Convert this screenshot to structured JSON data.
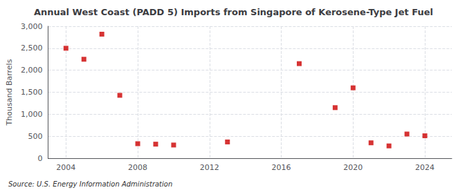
{
  "chart_data": {
    "type": "scatter",
    "title": "Annual West Coast (PADD 5) Imports from Singapore of Kerosene-Type Jet Fuel",
    "ylabel": "Thousand Barrels",
    "source": "Source: U.S. Energy Information Administration",
    "x": [
      2004,
      2005,
      2006,
      2007,
      2008,
      2009,
      2010,
      2013,
      2017,
      2019,
      2020,
      2021,
      2022,
      2023,
      2024
    ],
    "values": [
      2500,
      2250,
      2820,
      1430,
      330,
      320,
      300,
      370,
      2150,
      1150,
      1600,
      350,
      280,
      550,
      510
    ],
    "color": "#cc0000",
    "marker": "square",
    "xlim": [
      2003.0,
      2025.5
    ],
    "xticks": [
      2004,
      2008,
      2012,
      2016,
      2020,
      2024
    ],
    "ylim": [
      0,
      3000
    ],
    "yticks": [
      0,
      500,
      {
        "value": 1000,
        "label": "1,000"
      },
      {
        "value": 1500,
        "label": "1,500"
      },
      {
        "value": 2000,
        "label": "2,000"
      },
      {
        "value": 2500,
        "label": "2,500"
      },
      {
        "value": 3000,
        "label": "3,000"
      }
    ],
    "grid": true
  }
}
